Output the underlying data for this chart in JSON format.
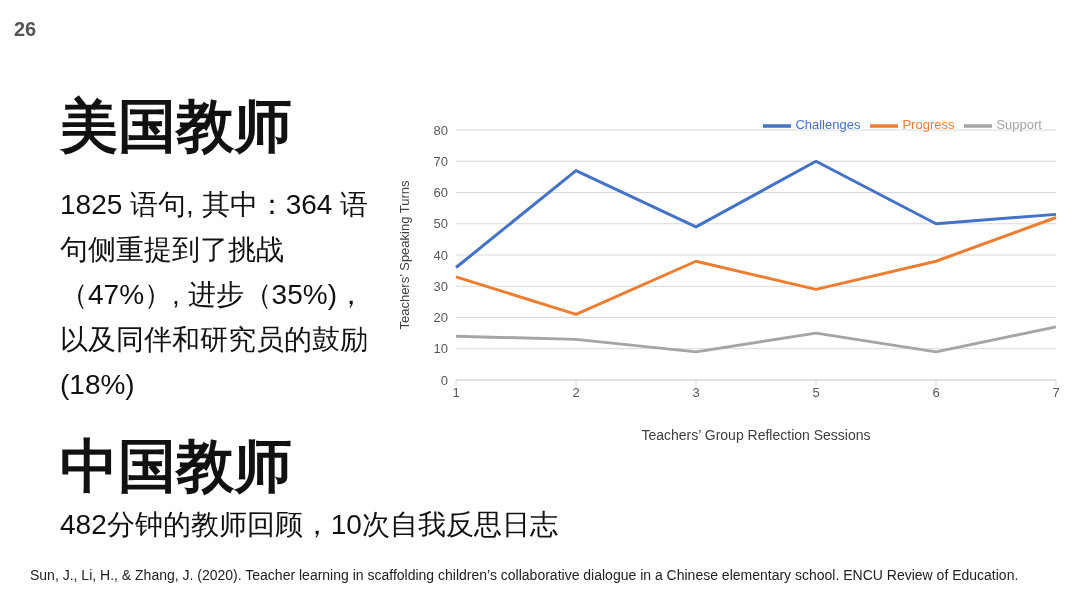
{
  "chart_data": {
    "type": "line",
    "xlabel": "Teachers’ Group Reflection Sessions",
    "ylabel": "Teachers’ Speaking Turns",
    "categories": [
      "1",
      "2",
      "3",
      "5",
      "6",
      "7"
    ],
    "series": [
      {
        "name": "Challenges",
        "color": "#4472c4",
        "values": [
          36,
          67,
          49,
          70,
          50,
          53
        ]
      },
      {
        "name": "Progress",
        "color": "#ed7d31",
        "values": [
          33,
          21,
          38,
          29,
          38,
          52
        ]
      },
      {
        "name": "Support",
        "color": "#a5a5a5",
        "values": [
          14,
          13,
          9,
          15,
          9,
          17
        ]
      }
    ],
    "ylim": [
      0,
      80
    ],
    "yticks": [
      0,
      10,
      20,
      30,
      40,
      50,
      60,
      70,
      80
    ],
    "grid": "y",
    "legend": "top right",
    "marker": "none",
    "annotations": [
      "26",
      "美国教师",
      "1825 语句, 其中：364 语句侧重提到了挑战（47%）, 进步（35%)，以及同伴和研究员的鼓励 (18%)",
      "中国教师",
      "482分钟的教师回顾，10次自我反思日志",
      "Sun, J., Li, H., & Zhang, J. (2020). Teacher learning in scaffolding children’s collaborative dialogue in a Chinese elementary school. ENCU Review of Education."
    ]
  }
}
